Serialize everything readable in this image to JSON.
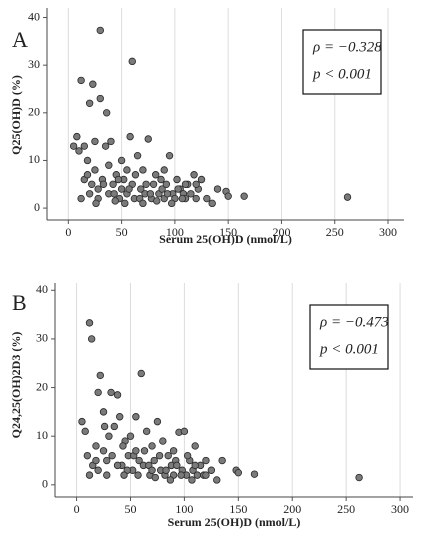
{
  "chart_data": [
    {
      "type": "scatter",
      "label": "A",
      "ylabel": "Q25(OH)D  (%)",
      "xlabel": "Serum 25(OH)D (nmol/L)",
      "annotations": [
        "ρ = −0.328",
        "p < 0.001"
      ],
      "color": "#7a7a7a",
      "grid": true,
      "xlim": [
        -20,
        315
      ],
      "ylim": [
        -2.5,
        42
      ],
      "xticks": [
        0,
        50,
        100,
        150,
        200,
        250,
        300
      ],
      "yticks": [
        0,
        10,
        20,
        30,
        40
      ],
      "x": [
        5,
        8,
        10,
        12,
        15,
        18,
        20,
        22,
        23,
        25,
        28,
        30,
        30,
        32,
        35,
        36,
        38,
        40,
        42,
        45,
        48,
        50,
        50,
        52,
        55,
        58,
        60,
        60,
        62,
        65,
        68,
        70,
        72,
        75,
        78,
        80,
        82,
        85,
        88,
        90,
        92,
        95,
        98,
        100,
        102,
        105,
        108,
        110,
        112,
        115,
        118,
        120,
        122,
        125,
        130,
        135,
        148,
        150,
        165,
        262,
        15,
        20,
        25,
        28,
        33,
        38,
        43,
        47,
        53,
        57,
        63,
        67,
        73,
        77,
        83,
        87,
        93,
        97,
        103,
        107,
        12,
        18,
        26,
        44,
        55,
        70,
        90,
        110,
        120,
        140
      ],
      "y": [
        13,
        15,
        12,
        26.8,
        13,
        10,
        22,
        5,
        26,
        14,
        4,
        37.3,
        23,
        6,
        13,
        20,
        3,
        14,
        5,
        7,
        2,
        10,
        4,
        6,
        3,
        15,
        30.8,
        5,
        2,
        11,
        4,
        8,
        3,
        14.5,
        2,
        5,
        7,
        3,
        4,
        2,
        5,
        11,
        3,
        2,
        6,
        4,
        3,
        2,
        5,
        3,
        7,
        2,
        4,
        6,
        2,
        1,
        3.5,
        2.5,
        2.5,
        2.3,
        6,
        3,
        8,
        2,
        5,
        9,
        3,
        6,
        1,
        4,
        7,
        2,
        5,
        3,
        1.5,
        6,
        3,
        1,
        4,
        2,
        2,
        7,
        1,
        1.5,
        8,
        1,
        8,
        5,
        5,
        4
      ]
    },
    {
      "type": "scatter",
      "label": "B",
      "ylabel": "Q24,25(OH)2D3 (%)",
      "xlabel": "Serum 25(OH)D (nmol/L)",
      "annotations": [
        "ρ = −0.473",
        "p < 0.001"
      ],
      "color": "#7a7a7a",
      "grid": true,
      "xlim": [
        -20,
        312
      ],
      "ylim": [
        -2.5,
        41.5
      ],
      "xticks": [
        0,
        50,
        100,
        150,
        200,
        250,
        300
      ],
      "yticks": [
        0,
        10,
        20,
        30,
        40
      ],
      "x": [
        5,
        8,
        10,
        12,
        14,
        18,
        20,
        22,
        25,
        28,
        30,
        32,
        35,
        38,
        40,
        42,
        45,
        48,
        50,
        52,
        55,
        58,
        60,
        62,
        65,
        68,
        70,
        72,
        75,
        78,
        80,
        82,
        85,
        88,
        90,
        92,
        95,
        98,
        100,
        102,
        105,
        108,
        110,
        112,
        115,
        118,
        120,
        125,
        130,
        148,
        150,
        165,
        262,
        15,
        20,
        25,
        28,
        33,
        38,
        43,
        47,
        53,
        57,
        63,
        67,
        73,
        77,
        83,
        87,
        93,
        97,
        103,
        107,
        12,
        18,
        26,
        44,
        55,
        70,
        90,
        110,
        120,
        135
      ],
      "y": [
        13,
        11,
        6,
        33.3,
        30,
        8,
        19,
        22.5,
        15,
        5,
        10,
        19,
        12,
        18.5,
        14,
        4,
        9,
        6,
        10,
        3,
        14,
        5,
        22.9,
        4,
        11,
        2,
        8,
        5,
        13,
        3,
        9,
        2,
        6,
        4,
        2,
        5,
        10.8,
        3,
        11,
        2,
        5,
        3,
        8,
        2,
        4,
        2,
        5,
        3,
        1,
        3,
        2.5,
        2.2,
        1.5,
        4,
        3,
        7,
        2,
        6,
        4,
        8,
        3,
        6,
        2,
        7,
        4,
        1.5,
        6,
        3,
        1,
        4,
        2,
        6,
        1,
        2,
        5,
        12,
        2,
        7,
        3,
        7,
        4,
        2,
        5
      ]
    }
  ]
}
